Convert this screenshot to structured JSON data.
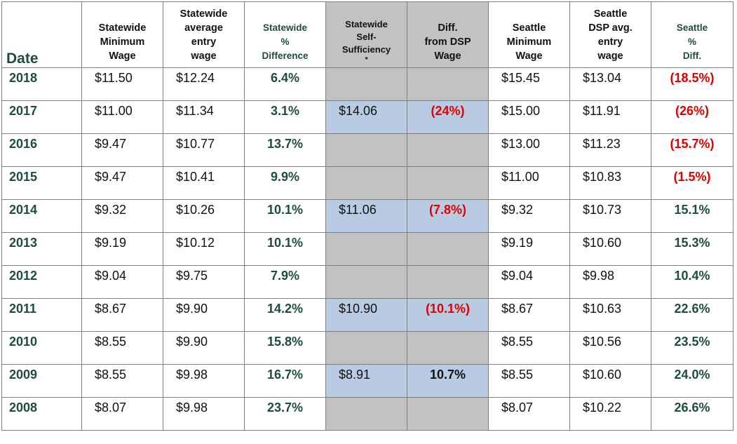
{
  "headers": {
    "date": "Date",
    "sw_min": [
      "Statewide",
      "Minimum",
      "Wage"
    ],
    "sw_avg": [
      "Statewide",
      "average",
      "entry",
      "wage"
    ],
    "sw_pct": [
      "Statewide",
      "%",
      "Difference"
    ],
    "sw_self": [
      "Statewide",
      "Self-",
      "Sufficiency",
      "*"
    ],
    "diff": [
      "Diff.",
      "from DSP",
      "Wage"
    ],
    "se_min": [
      "Seattle",
      "Minimum",
      "Wage"
    ],
    "se_avg": [
      "Seattle",
      "DSP avg.",
      "entry",
      "wage"
    ],
    "se_pct": [
      "Seattle",
      "%",
      "Diff."
    ]
  },
  "colors": {
    "green_text": "#1e4d3a",
    "red_text": "#e00000",
    "gray_fill": "#c2c2c2",
    "blue_fill": "#b9cbe3"
  },
  "rows": [
    {
      "year": "2018",
      "sw_min": "$11.50",
      "sw_avg": "$12.24",
      "sw_pct": "6.4%",
      "self": "",
      "diff": "",
      "diff_tone": "",
      "se_min": "$15.45",
      "se_avg": "$13.04",
      "se_pct": "(18.5%)",
      "se_tone": "neg"
    },
    {
      "year": "2017",
      "sw_min": "$11.00",
      "sw_avg": "$11.34",
      "sw_pct": "3.1%",
      "self": "$14.06",
      "diff": "(24%)",
      "diff_tone": "neg",
      "se_min": "$15.00",
      "se_avg": "$11.91",
      "se_pct": "(26%)",
      "se_tone": "neg"
    },
    {
      "year": "2016",
      "sw_min": "$9.47",
      "sw_avg": "$10.77",
      "sw_pct": "13.7%",
      "self": "",
      "diff": "",
      "diff_tone": "",
      "se_min": "$13.00",
      "se_avg": "$11.23",
      "se_pct": "(15.7%)",
      "se_tone": "neg"
    },
    {
      "year": "2015",
      "sw_min": "$9.47",
      "sw_avg": "$10.41",
      "sw_pct": "9.9%",
      "self": "",
      "diff": "",
      "diff_tone": "",
      "se_min": "$11.00",
      "se_avg": "$10.83",
      "se_pct": "(1.5%)",
      "se_tone": "neg"
    },
    {
      "year": "2014",
      "sw_min": "$9.32",
      "sw_avg": "$10.26",
      "sw_pct": "10.1%",
      "self": "$11.06",
      "diff": "(7.8%)",
      "diff_tone": "neg",
      "se_min": "$9.32",
      "se_avg": "$10.73",
      "se_pct": "15.1%",
      "se_tone": "pos"
    },
    {
      "year": "2013",
      "sw_min": "$9.19",
      "sw_avg": "$10.12",
      "sw_pct": "10.1%",
      "self": "",
      "diff": "",
      "diff_tone": "",
      "se_min": "$9.19",
      "se_avg": "$10.60",
      "se_pct": "15.3%",
      "se_tone": "pos"
    },
    {
      "year": "2012",
      "sw_min": "$9.04",
      "sw_avg": "$9.75",
      "sw_pct": "7.9%",
      "self": "",
      "diff": "",
      "diff_tone": "",
      "se_min": "$9.04",
      "se_avg": "$9.98",
      "se_pct": "10.4%",
      "se_tone": "pos"
    },
    {
      "year": "2011",
      "sw_min": "$8.67",
      "sw_avg": "$9.90",
      "sw_pct": "14.2%",
      "self": "$10.90",
      "diff": "(10.1%)",
      "diff_tone": "neg",
      "se_min": "$8.67",
      "se_avg": "$10.63",
      "se_pct": "22.6%",
      "se_tone": "pos"
    },
    {
      "year": "2010",
      "sw_min": "$8.55",
      "sw_avg": "$9.90",
      "sw_pct": "15.8%",
      "self": "",
      "diff": "",
      "diff_tone": "",
      "se_min": "$8.55",
      "se_avg": "$10.56",
      "se_pct": "23.5%",
      "se_tone": "pos"
    },
    {
      "year": "2009",
      "sw_min": "$8.55",
      "sw_avg": "$9.98",
      "sw_pct": "16.7%",
      "self": "$8.91",
      "diff": "10.7%",
      "diff_tone": "blk",
      "se_min": "$8.55",
      "se_avg": "$10.60",
      "se_pct": "24.0%",
      "se_tone": "pos"
    },
    {
      "year": "2008",
      "sw_min": "$8.07",
      "sw_avg": "$9.98",
      "sw_pct": "23.7%",
      "self": "",
      "diff": "",
      "diff_tone": "",
      "se_min": "$8.07",
      "se_avg": "$10.22",
      "se_pct": "26.6%",
      "se_tone": "pos"
    }
  ]
}
